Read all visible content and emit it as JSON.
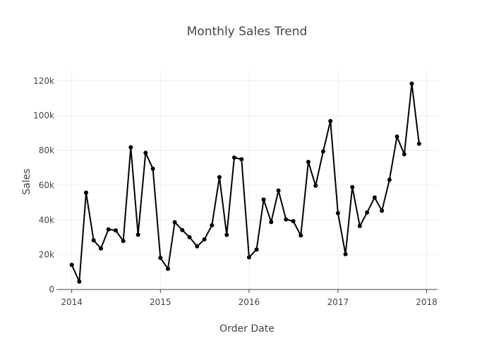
{
  "chart_data": {
    "type": "line",
    "title": "Monthly Sales Trend",
    "xlabel": "Order Date",
    "ylabel": "Sales",
    "x_ticks": [
      "2014",
      "2015",
      "2016",
      "2017",
      "2018"
    ],
    "y_ticks": [
      "0",
      "20k",
      "40k",
      "60k",
      "80k",
      "100k",
      "120k"
    ],
    "ylim": [
      0,
      126000
    ],
    "xlim": [
      "2013-10-30",
      "2018-02-15"
    ],
    "grid": true,
    "line_color": "#000000",
    "series": [
      {
        "x": [
          "2014-01",
          "2014-02",
          "2014-03",
          "2014-04",
          "2014-05",
          "2014-06",
          "2014-07",
          "2014-08",
          "2014-09",
          "2014-10",
          "2014-11",
          "2014-12",
          "2015-01",
          "2015-02",
          "2015-03",
          "2015-04",
          "2015-05",
          "2015-06",
          "2015-07",
          "2015-08",
          "2015-09",
          "2015-10",
          "2015-11",
          "2015-12",
          "2016-01",
          "2016-02",
          "2016-03",
          "2016-04",
          "2016-05",
          "2016-06",
          "2016-07",
          "2016-08",
          "2016-09",
          "2016-10",
          "2016-11",
          "2016-12",
          "2017-01",
          "2017-02",
          "2017-03",
          "2017-04",
          "2017-05",
          "2017-06",
          "2017-07",
          "2017-08",
          "2017-09",
          "2017-10",
          "2017-11",
          "2017-12"
        ],
        "values": [
          14200,
          4500,
          55700,
          28300,
          23600,
          34600,
          34000,
          27900,
          81800,
          31500,
          78600,
          69500,
          18200,
          11900,
          38700,
          34200,
          30100,
          24800,
          28800,
          36900,
          64600,
          31400,
          75900,
          74900,
          18500,
          23000,
          51700,
          38800,
          56900,
          40300,
          39300,
          31100,
          73400,
          59700,
          79400,
          96900,
          43900,
          20300,
          58900,
          36500,
          44300,
          52900,
          45300,
          63100,
          87900,
          77800,
          118400,
          83800
        ]
      }
    ]
  }
}
